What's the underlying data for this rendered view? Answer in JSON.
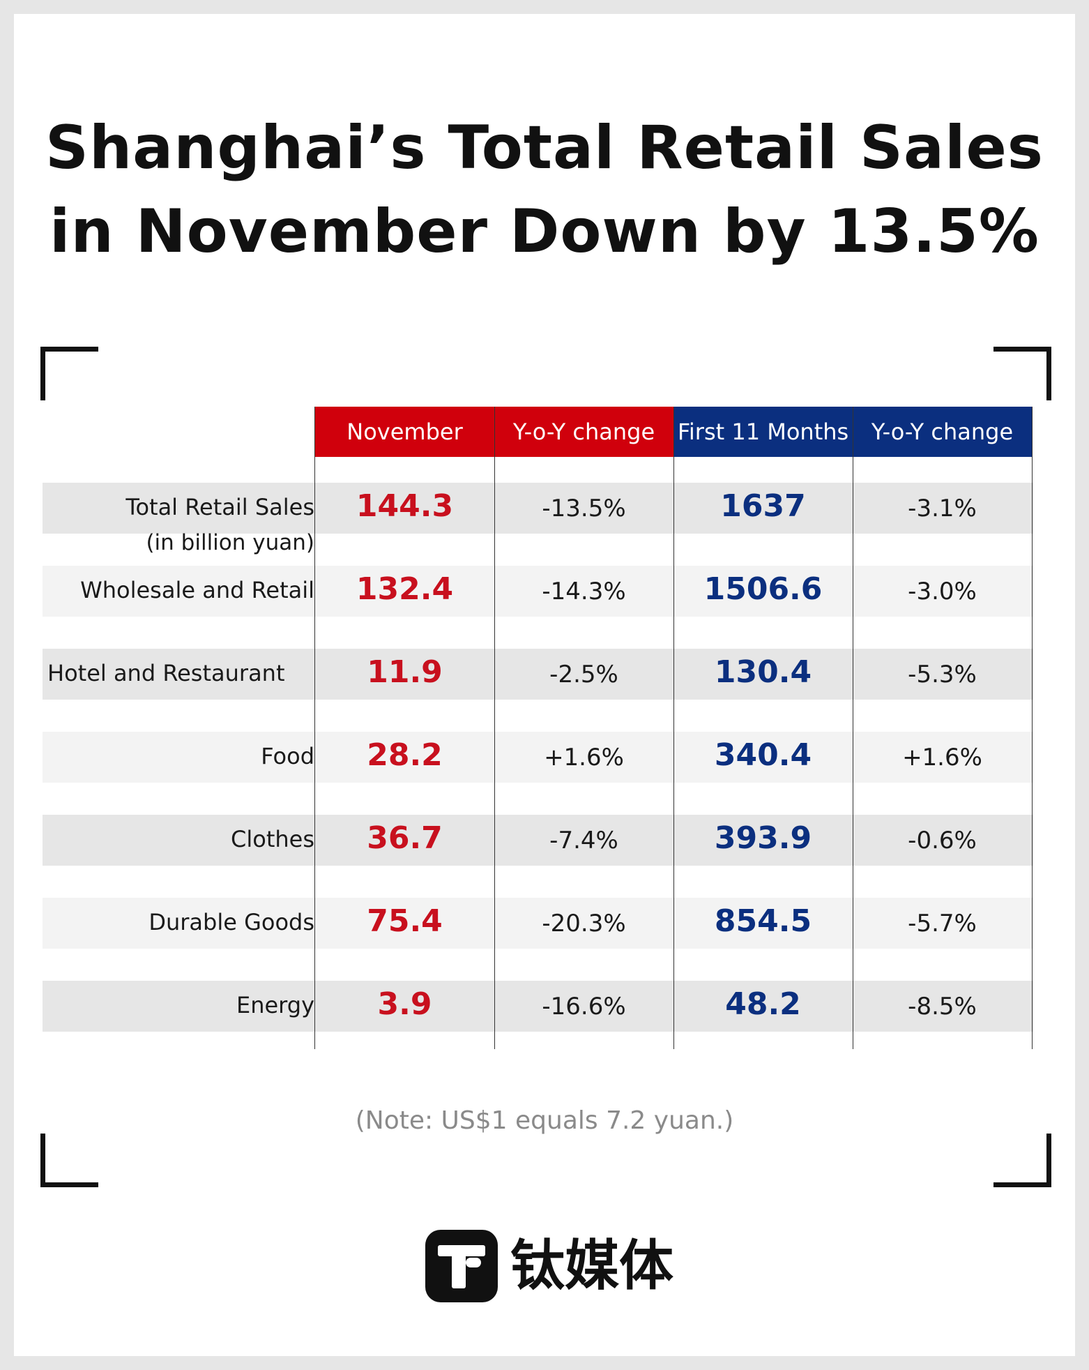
{
  "title_line1": "Shanghai’s Total Retail Sales",
  "title_line2": "in November Down by 13.5%",
  "headers": [
    "November",
    "Y-o-Y change",
    "First 11 Months",
    "Y-o-Y change"
  ],
  "colors": {
    "red": "#d0000c",
    "blue": "#0b2f7f"
  },
  "chart_data": {
    "type": "table",
    "title": "Shanghai’s Total Retail Sales in November Down by 13.5%",
    "columns": [
      "November",
      "Y-o-Y change",
      "First 11 Months",
      "Y-o-Y change"
    ],
    "rows": [
      {
        "label": "Total Retail Sales",
        "sublabel": "(in billion yuan)",
        "november": "144.3",
        "nov_yoy": "-13.5%",
        "first11": "1637",
        "first11_yoy": "-3.1%"
      },
      {
        "label": "Wholesale and Retail",
        "november": "132.4",
        "nov_yoy": "-14.3%",
        "first11": "1506.6",
        "first11_yoy": "-3.0%"
      },
      {
        "label": "Hotel and Restaurant",
        "november": "11.9",
        "nov_yoy": "-2.5%",
        "first11": "130.4",
        "first11_yoy": "-5.3%"
      },
      {
        "label": "Food",
        "november": "28.2",
        "nov_yoy": "+1.6%",
        "first11": "340.4",
        "first11_yoy": "+1.6%"
      },
      {
        "label": "Clothes",
        "november": "36.7",
        "nov_yoy": "-7.4%",
        "first11": "393.9",
        "first11_yoy": "-0.6%"
      },
      {
        "label": "Durable Goods",
        "november": "75.4",
        "nov_yoy": "-20.3%",
        "first11": "854.5",
        "first11_yoy": "-5.7%"
      },
      {
        "label": "Energy",
        "november": "3.9",
        "nov_yoy": "-16.6%",
        "first11": "48.2",
        "first11_yoy": "-8.5%"
      }
    ]
  },
  "note": "(Note: US$1 equals 7.2 yuan.)",
  "logo": {
    "icon": "t-logo-icon",
    "text": "钛媒体"
  }
}
